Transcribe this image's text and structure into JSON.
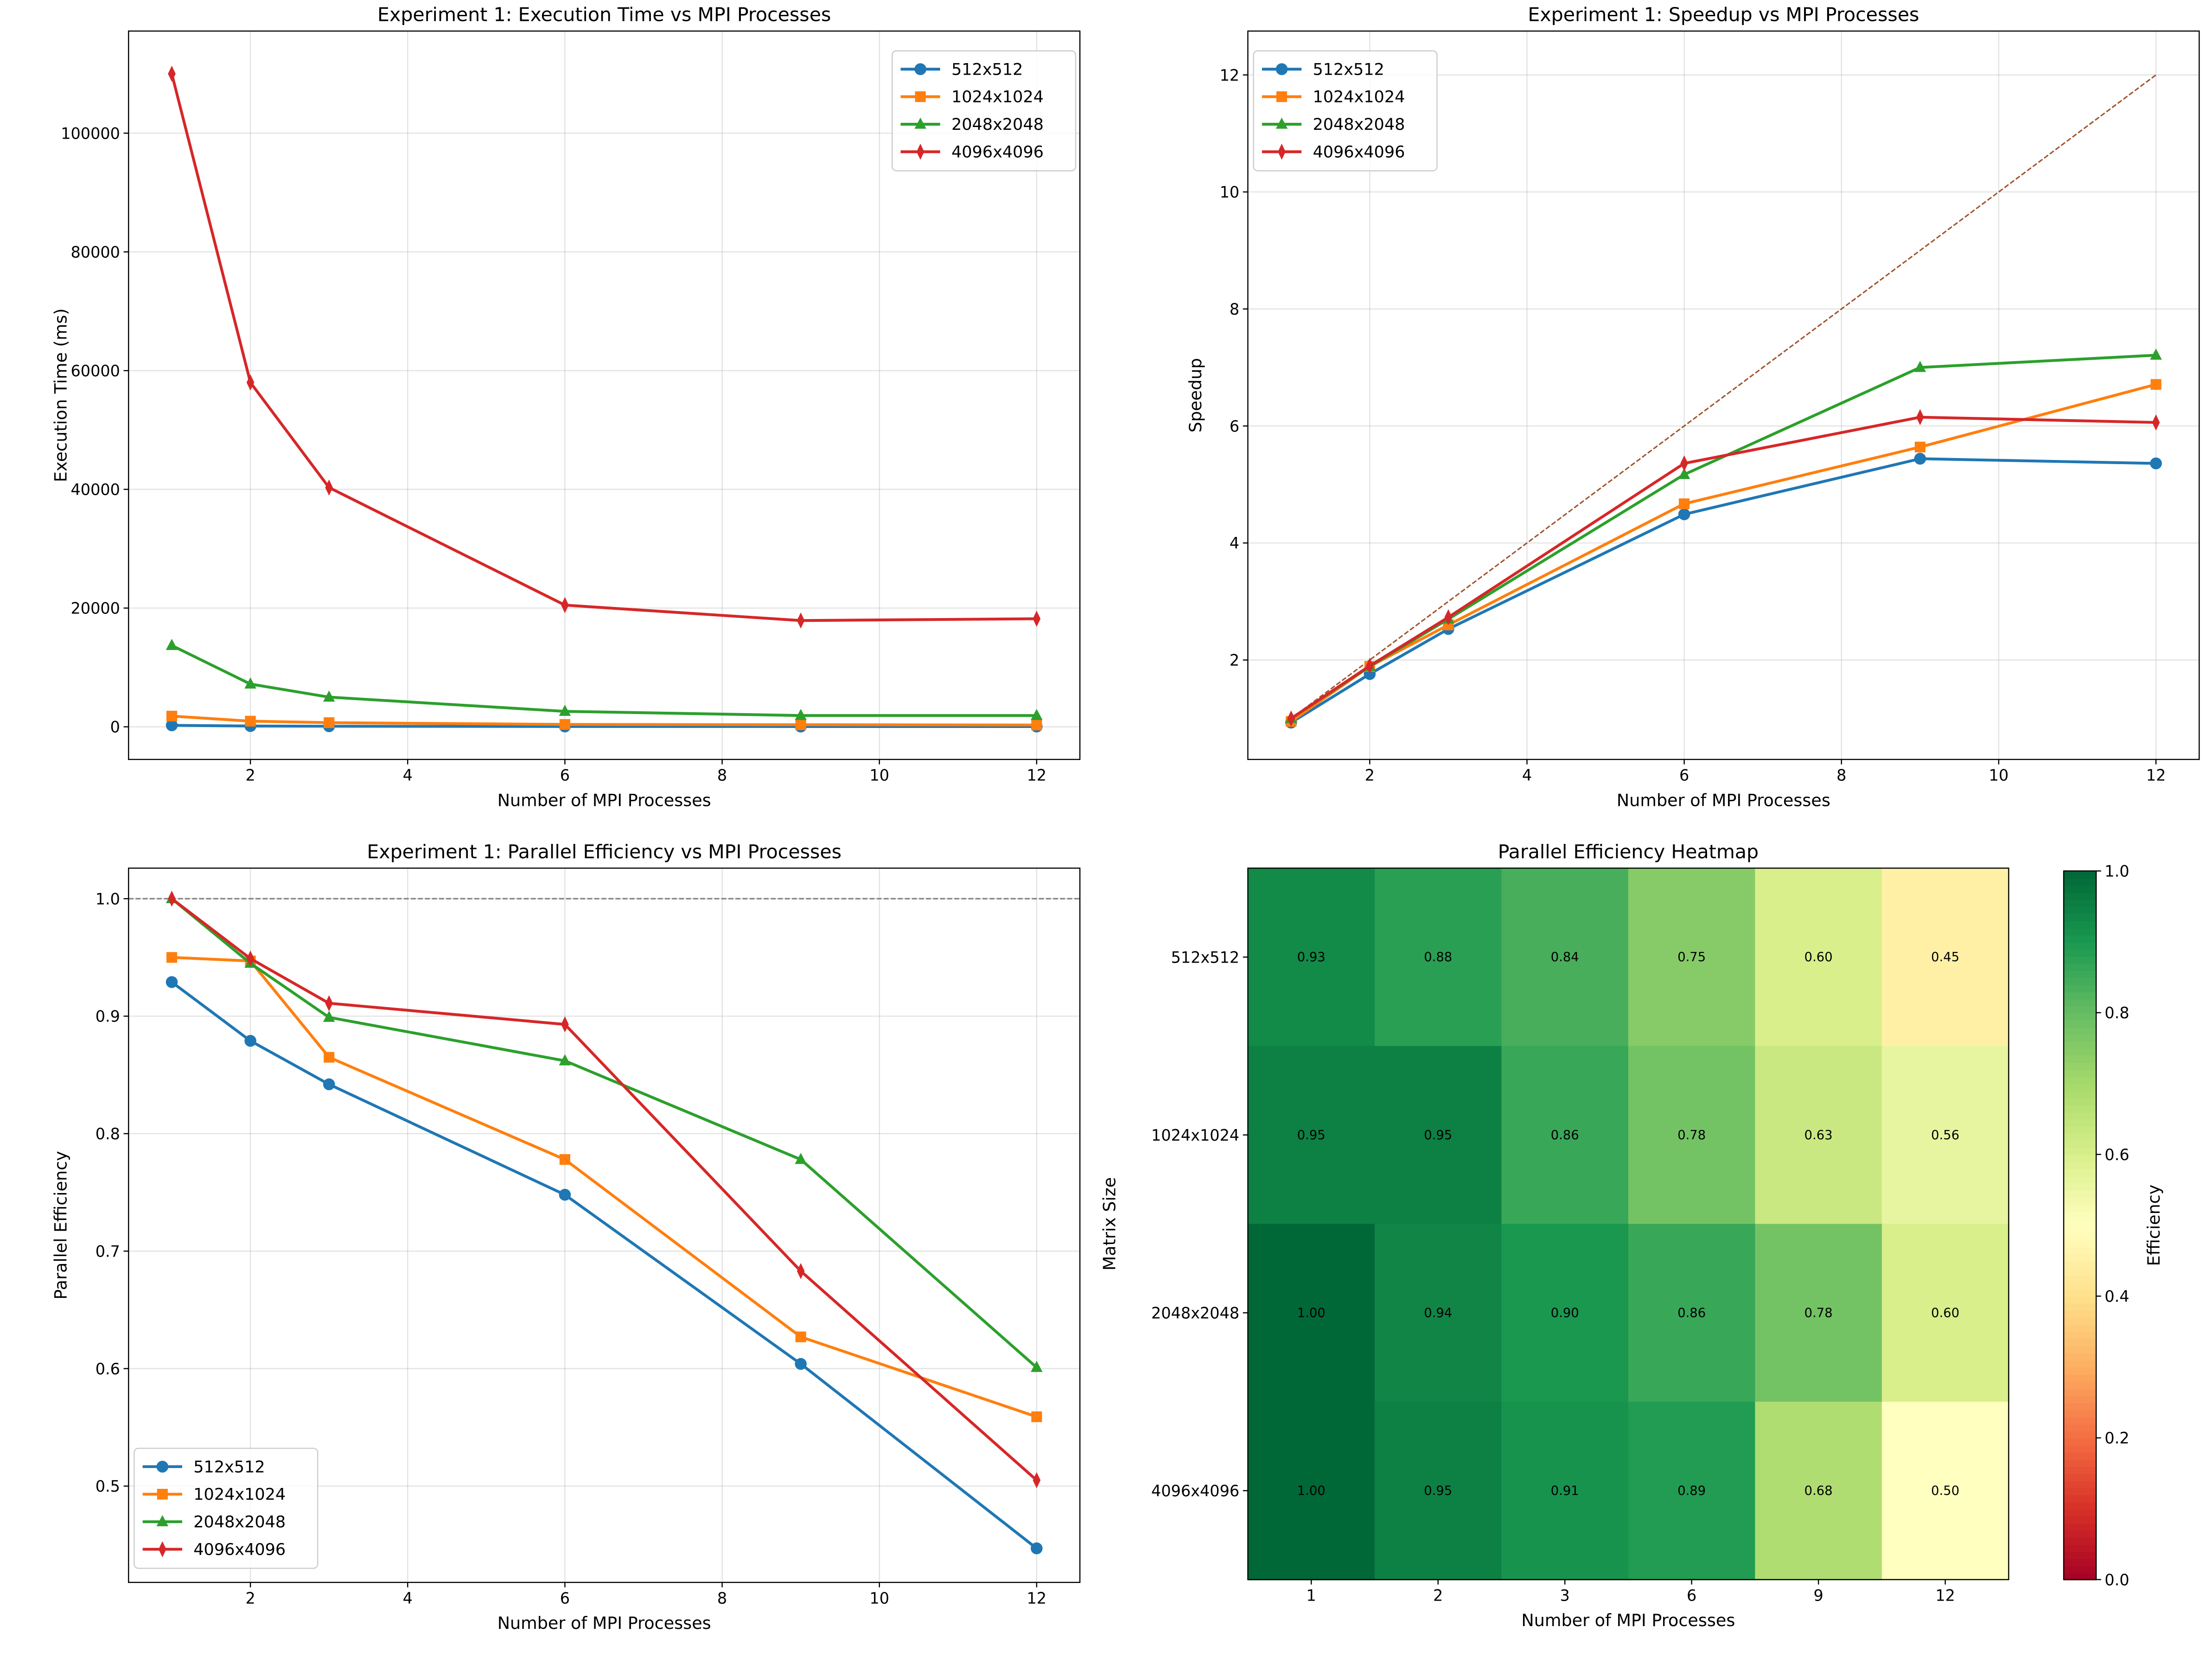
{
  "chart_data": [
    {
      "type": "line",
      "title": "Experiment 1: Execution Time vs MPI Processes",
      "xlabel": "Number of MPI Processes",
      "ylabel": "Execution Time (ms)",
      "x": [
        1,
        2,
        3,
        6,
        9,
        12
      ],
      "xlim": [
        0.45,
        12.55
      ],
      "ylim": [
        -5500,
        117200
      ],
      "xticks": [
        2,
        4,
        6,
        8,
        10,
        12
      ],
      "yticks": [
        0,
        20000,
        40000,
        60000,
        80000,
        100000
      ],
      "grid": true,
      "legend": "upper right",
      "series": [
        {
          "name": "512x512",
          "color": "#1f77b4",
          "marker": "circle",
          "values": [
            250,
            130,
            95,
            55,
            45,
            45
          ]
        },
        {
          "name": "1024x1024",
          "color": "#ff7f0e",
          "marker": "square",
          "values": [
            1800,
            950,
            700,
            400,
            350,
            300
          ]
        },
        {
          "name": "2048x2048",
          "color": "#2ca02c",
          "marker": "triangle",
          "values": [
            13700,
            7200,
            5000,
            2600,
            1900,
            1900
          ]
        },
        {
          "name": "4096x4096",
          "color": "#d62728",
          "marker": "diamond",
          "values": [
            110000,
            58000,
            40300,
            20500,
            17900,
            18200
          ]
        }
      ]
    },
    {
      "type": "line",
      "title": "Experiment 1: Speedup vs MPI Processes",
      "xlabel": "Number of MPI Processes",
      "ylabel": "Speedup",
      "x": [
        1,
        2,
        3,
        6,
        9,
        12
      ],
      "xlim": [
        0.45,
        12.55
      ],
      "ylim": [
        0.3,
        12.75
      ],
      "xticks": [
        2,
        4,
        6,
        8,
        10,
        12
      ],
      "yticks": [
        2,
        4,
        6,
        8,
        10,
        12
      ],
      "grid": true,
      "legend": "upper left",
      "ideal_line": {
        "x": [
          1,
          12
        ],
        "y": [
          1,
          12
        ],
        "color": "#a0522d",
        "style": "dashed"
      },
      "series": [
        {
          "name": "512x512",
          "color": "#1f77b4",
          "marker": "circle",
          "values": [
            0.93,
            1.76,
            2.53,
            4.49,
            5.44,
            5.36
          ]
        },
        {
          "name": "1024x1024",
          "color": "#ff7f0e",
          "marker": "square",
          "values": [
            0.95,
            1.89,
            2.6,
            4.67,
            5.64,
            6.71
          ]
        },
        {
          "name": "2048x2048",
          "color": "#2ca02c",
          "marker": "triangle",
          "values": [
            1.0,
            1.89,
            2.7,
            5.17,
            7.0,
            7.21
          ]
        },
        {
          "name": "4096x4096",
          "color": "#d62728",
          "marker": "diamond",
          "values": [
            1.0,
            1.9,
            2.73,
            5.36,
            6.15,
            6.06
          ]
        }
      ]
    },
    {
      "type": "line",
      "title": "Experiment 1: Parallel Efficiency vs MPI Processes",
      "xlabel": "Number of MPI Processes",
      "ylabel": "Parallel Efficiency",
      "x": [
        1,
        2,
        3,
        6,
        9,
        12
      ],
      "xlim": [
        0.45,
        12.55
      ],
      "ylim": [
        0.418,
        1.026
      ],
      "xticks": [
        2,
        4,
        6,
        8,
        10,
        12
      ],
      "yticks": [
        0.5,
        0.6,
        0.7,
        0.8,
        0.9,
        1.0
      ],
      "ytick_labels": [
        "0.5",
        "0.6",
        "0.7",
        "0.8",
        "0.9",
        "1.0"
      ],
      "grid": true,
      "legend": "lower left",
      "reference_line": {
        "y": 1.0,
        "color": "#808080",
        "style": "dashed"
      },
      "series": [
        {
          "name": "512x512",
          "color": "#1f77b4",
          "marker": "circle",
          "values": [
            0.929,
            0.879,
            0.842,
            0.748,
            0.604,
            0.447
          ]
        },
        {
          "name": "1024x1024",
          "color": "#ff7f0e",
          "marker": "square",
          "values": [
            0.95,
            0.947,
            0.865,
            0.778,
            0.627,
            0.559
          ]
        },
        {
          "name": "2048x2048",
          "color": "#2ca02c",
          "marker": "triangle",
          "values": [
            1.0,
            0.945,
            0.899,
            0.862,
            0.778,
            0.601
          ]
        },
        {
          "name": "4096x4096",
          "color": "#d62728",
          "marker": "diamond",
          "values": [
            1.0,
            0.949,
            0.911,
            0.893,
            0.683,
            0.505
          ]
        }
      ]
    },
    {
      "type": "heatmap",
      "title": "Parallel Efficiency Heatmap",
      "xlabel": "Number of MPI Processes",
      "ylabel": "Matrix Size",
      "colormap": "RdYlGn",
      "vmin": 0,
      "vmax": 1,
      "colorbar_label": "Efficiency",
      "colorbar_ticks": [
        "0.0",
        "0.2",
        "0.4",
        "0.6",
        "0.8",
        "1.0"
      ],
      "x_categories": [
        "1",
        "2",
        "3",
        "6",
        "9",
        "12"
      ],
      "y_categories": [
        "512x512",
        "1024x1024",
        "2048x2048",
        "4096x4096"
      ],
      "values": [
        [
          0.93,
          0.88,
          0.84,
          0.75,
          0.6,
          0.45
        ],
        [
          0.95,
          0.95,
          0.86,
          0.78,
          0.63,
          0.56
        ],
        [
          1.0,
          0.94,
          0.9,
          0.86,
          0.78,
          0.6
        ],
        [
          1.0,
          0.95,
          0.91,
          0.89,
          0.68,
          0.5
        ]
      ]
    }
  ]
}
